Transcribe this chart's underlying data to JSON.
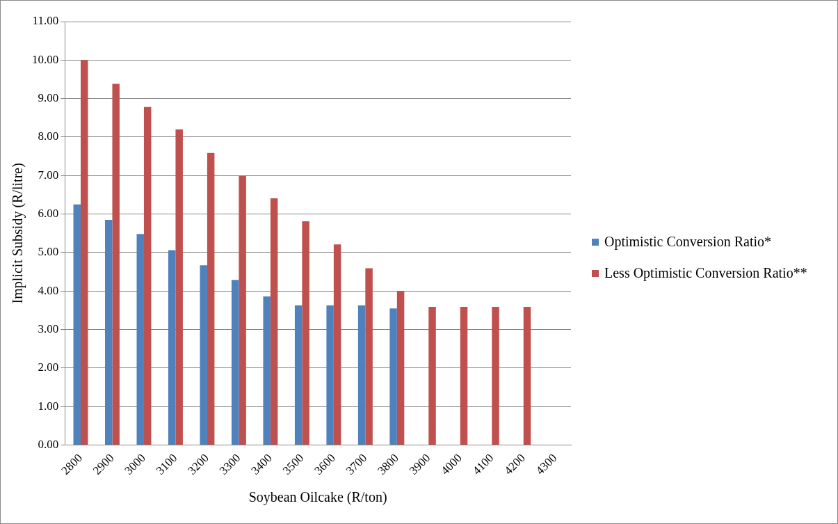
{
  "chart_data": {
    "type": "bar",
    "xlabel": "Soybean Oilcake (R/ton)",
    "ylabel": "Implicit Subsidy (R/litre)",
    "categories": [
      "2800",
      "2900",
      "3000",
      "3100",
      "3200",
      "3300",
      "3400",
      "3500",
      "3600",
      "3700",
      "3800",
      "3900",
      "4000",
      "4100",
      "4200",
      "4300"
    ],
    "series": [
      {
        "name": "Optimistic Conversion Ratio*",
        "color": "#4f81bd",
        "values": [
          6.25,
          5.85,
          5.48,
          5.06,
          4.67,
          4.29,
          3.86,
          3.63,
          3.63,
          3.63,
          3.55,
          null,
          null,
          null,
          null,
          null
        ]
      },
      {
        "name": "Less Optimistic Conversion Ratio**",
        "color": "#c0504d",
        "values": [
          10.0,
          9.38,
          8.78,
          8.2,
          7.59,
          6.99,
          6.41,
          5.81,
          5.21,
          4.59,
          4.0,
          3.59,
          3.59,
          3.59,
          3.59,
          null
        ]
      }
    ],
    "ylim": [
      0,
      11
    ],
    "yticks": [
      {
        "value": 0,
        "label": "0.00"
      },
      {
        "value": 1,
        "label": "1.00"
      },
      {
        "value": 2,
        "label": "2.00"
      },
      {
        "value": 3,
        "label": "3.00"
      },
      {
        "value": 4,
        "label": "4.00"
      },
      {
        "value": 5,
        "label": "5.00"
      },
      {
        "value": 6,
        "label": "6.00"
      },
      {
        "value": 7,
        "label": "7.00"
      },
      {
        "value": 8,
        "label": "8.00"
      },
      {
        "value": 9,
        "label": "9.00"
      },
      {
        "value": 10,
        "label": "10.00"
      },
      {
        "value": 11,
        "label": "11.00"
      }
    ],
    "grid": "y",
    "legend": "right"
  }
}
